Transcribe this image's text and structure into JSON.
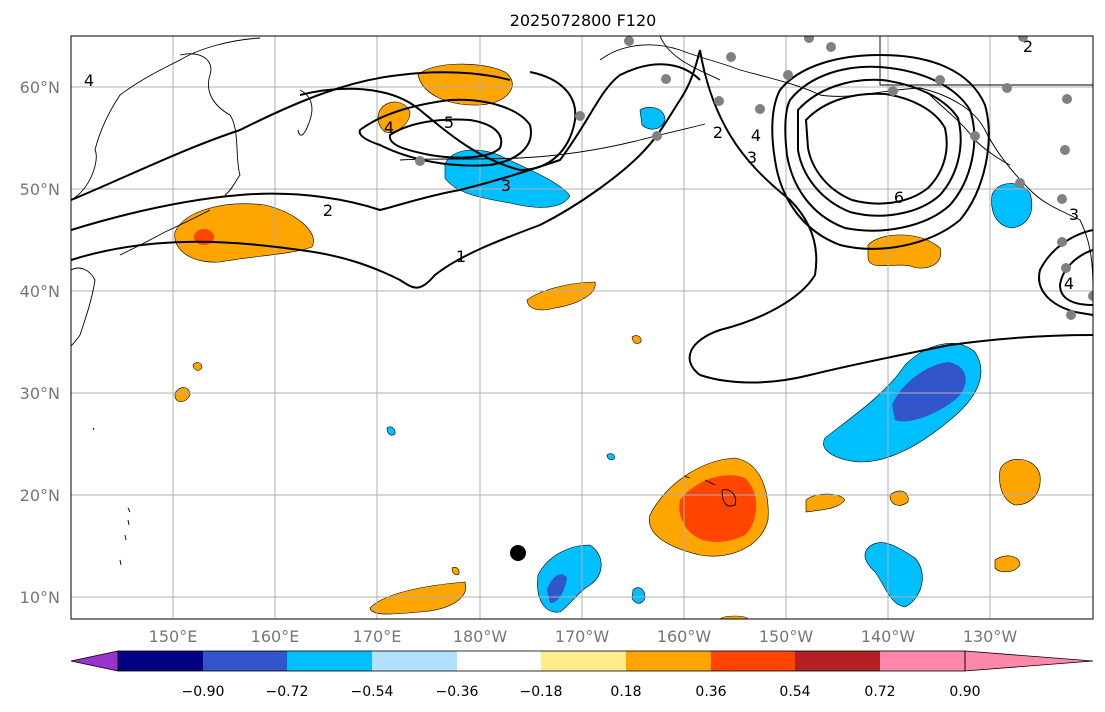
{
  "title": "2025072800 F120",
  "map": {
    "projection": "equirectangular",
    "lon_range": [
      140,
      240
    ],
    "lat_range": [
      8,
      65
    ],
    "lat_labels": [
      "60°N",
      "50°N",
      "40°N",
      "30°N",
      "20°N",
      "10°N"
    ],
    "lon_labels": [
      "150°E",
      "160°E",
      "170°E",
      "180°W",
      "170°W",
      "160°W",
      "150°W",
      "140°W",
      "130°W"
    ],
    "grid": true
  },
  "colorbar": {
    "tick_labels": [
      "−0.90",
      "−0.72",
      "−0.54",
      "−0.36",
      "−0.18",
      "0.18",
      "0.36",
      "0.54",
      "0.72",
      "0.90"
    ],
    "colors": [
      "#9933cc",
      "#000080",
      "#3355cc",
      "#00bfff",
      "#b3e0ff",
      "#ffffff",
      "#ffec8b",
      "#ffa500",
      "#ff4500",
      "#b22222",
      "#ff88aa"
    ],
    "extend": "both"
  },
  "contour_labels": [
    "4",
    "5",
    "4",
    "3",
    "2",
    "1",
    "2",
    "4",
    "3",
    "6",
    "4",
    "3",
    "2"
  ],
  "station_marker_color": "#808080",
  "highlight_marker_color": "#000000"
}
